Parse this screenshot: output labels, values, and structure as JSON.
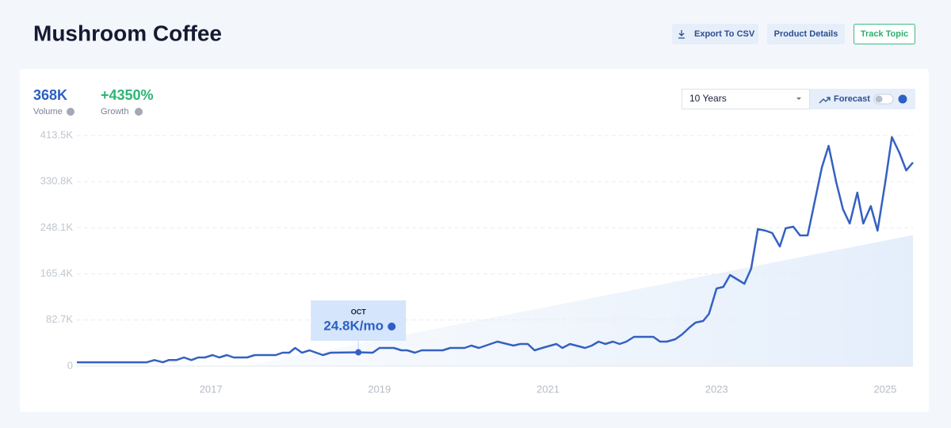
{
  "header": {
    "title": "Mushroom Coffee",
    "buttons": [
      "Export To CSV",
      "Product Details",
      "Track Topic"
    ]
  },
  "stats": [
    {
      "value": "368K",
      "label": "Volume"
    },
    {
      "value": "+4350%",
      "label": "Growth"
    }
  ],
  "controls": {
    "range": "10 Years",
    "forecast": "Forecast"
  },
  "chart_data": {
    "type": "line",
    "color": "#3461c1",
    "x": [
      2015.41,
      2016.24,
      2016.33,
      2016.43,
      2016.5,
      2016.59,
      2016.68,
      2016.77,
      2016.85,
      2016.93,
      2017.02,
      2017.1,
      2017.19,
      2017.27,
      2017.43,
      2017.52,
      2017.77,
      2017.85,
      2017.93,
      2018.0,
      2018.08,
      2018.17,
      2018.33,
      2018.42,
      2018.75,
      2018.92,
      2019.0,
      2019.17,
      2019.26,
      2019.33,
      2019.42,
      2019.5,
      2019.75,
      2019.84,
      2020.01,
      2020.09,
      2020.18,
      2020.4,
      2020.59,
      2020.67,
      2020.76,
      2020.84,
      2020.93,
      2021.1,
      2021.17,
      2021.26,
      2021.44,
      2021.52,
      2021.6,
      2021.68,
      2021.77,
      2021.85,
      2021.93,
      2022.02,
      2022.25,
      2022.33,
      2022.41,
      2022.51,
      2022.59,
      2022.68,
      2022.75,
      2022.84,
      2022.91,
      2023.0,
      2023.08,
      2023.16,
      2023.33,
      2023.41,
      2023.49,
      2023.58,
      2023.66,
      2023.75,
      2023.82,
      2023.91,
      2023.99,
      2024.08,
      2024.25,
      2024.33,
      2024.42,
      2024.5,
      2024.58,
      2024.67,
      2024.74,
      2024.83,
      2024.91,
      2025.0,
      2025.08,
      2025.17,
      2025.25,
      2025.33
    ],
    "values": [
      7000,
      7000,
      11000,
      7000,
      11000,
      11000,
      15600,
      11000,
      15600,
      15600,
      19900,
      15600,
      19900,
      15600,
      15600,
      19900,
      19900,
      24200,
      24200,
      32700,
      24200,
      28400,
      19900,
      24200,
      24800,
      24200,
      32700,
      32700,
      28400,
      28400,
      24200,
      28400,
      28400,
      32700,
      32700,
      36900,
      32700,
      44100,
      36900,
      39800,
      39800,
      28400,
      32700,
      39800,
      32700,
      39800,
      32700,
      36900,
      44100,
      39800,
      44100,
      39800,
      44100,
      52600,
      52600,
      44100,
      44100,
      48300,
      56800,
      69600,
      78200,
      81000,
      93800,
      139300,
      142100,
      163400,
      147800,
      174800,
      245800,
      243000,
      238700,
      214600,
      247300,
      250100,
      234500,
      234500,
      356700,
      395000,
      329700,
      281400,
      255800,
      311200,
      255800,
      287000,
      243000,
      328300,
      410700,
      382200,
      351000,
      365200
    ],
    "trend": {
      "x": [
        2017.4,
        2025.33
      ],
      "values": [
        0,
        235000
      ]
    },
    "annotation": {
      "label": "OCT",
      "x": 2018.75,
      "value": 24800,
      "value_label": "24.8K/mo"
    },
    "xlim": [
      2015.41,
      2025.33
    ],
    "xticks": [
      2017,
      2019,
      2021,
      2023,
      2025
    ],
    "ylim": [
      0,
      413500
    ],
    "yticks": [
      0,
      {
        "value": 82700,
        "label": "82.7K"
      },
      {
        "value": 165400,
        "label": "165.4K"
      },
      {
        "value": 248100,
        "label": "248.1K"
      },
      {
        "value": 330800,
        "label": "330.8K"
      },
      {
        "value": 413500,
        "label": "413.5K"
      }
    ],
    "grid": true
  }
}
